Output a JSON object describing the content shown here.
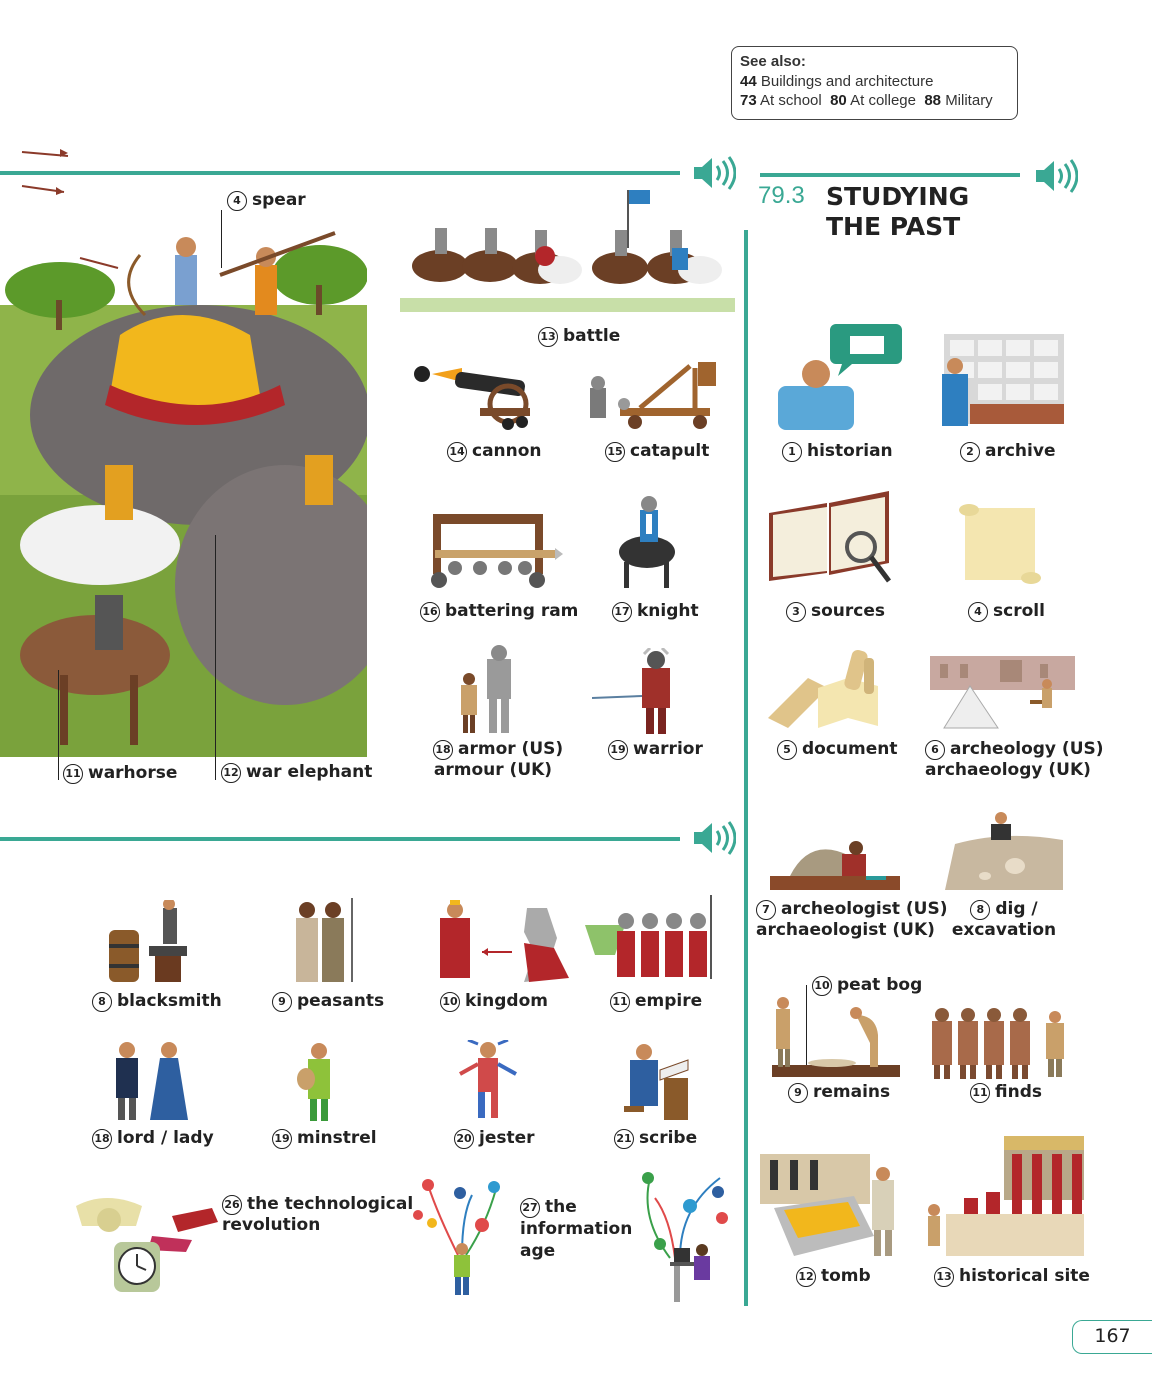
{
  "see_also": {
    "heading": "See also:",
    "line1_num": "44",
    "line1_text": "Buildings and architecture",
    "line2_a_num": "73",
    "line2_a_text": "At school",
    "line2_b_num": "80",
    "line2_b_text": "At college",
    "line2_c_num": "88",
    "line2_c_text": "Military"
  },
  "section": {
    "number": "79.3",
    "title_line1": "STUDYING",
    "title_line2": "THE PAST"
  },
  "battle_scene": {
    "spear": {
      "n": "4",
      "text": "spear"
    },
    "warhorse": {
      "n": "11",
      "text": "warhorse"
    },
    "war_elephant": {
      "n": "12",
      "text": "war elephant"
    }
  },
  "warfare": [
    {
      "n": "13",
      "text": "battle"
    },
    {
      "n": "14",
      "text": "cannon"
    },
    {
      "n": "15",
      "text": "catapult"
    },
    {
      "n": "16",
      "text": "battering ram"
    },
    {
      "n": "17",
      "text": "knight"
    },
    {
      "n": "18",
      "text": "armor (US)",
      "text2": "armour (UK)"
    },
    {
      "n": "19",
      "text": "warrior"
    }
  ],
  "society": [
    {
      "n": "8",
      "text": "blacksmith"
    },
    {
      "n": "9",
      "text": "peasants"
    },
    {
      "n": "10",
      "text": "kingdom"
    },
    {
      "n": "11",
      "text": "empire"
    },
    {
      "n": "18",
      "text": "lord / lady"
    },
    {
      "n": "19",
      "text": "minstrel"
    },
    {
      "n": "20",
      "text": "jester"
    },
    {
      "n": "21",
      "text": "scribe"
    },
    {
      "n": "26",
      "text": "the technological",
      "text2": "revolution"
    },
    {
      "n": "27",
      "text": "the",
      "text2": "information",
      "text3": "age"
    }
  ],
  "studying": [
    {
      "n": "1",
      "text": "historian"
    },
    {
      "n": "2",
      "text": "archive"
    },
    {
      "n": "3",
      "text": "sources"
    },
    {
      "n": "4",
      "text": "scroll"
    },
    {
      "n": "5",
      "text": "document"
    },
    {
      "n": "6",
      "text": "archeology (US)",
      "text2": "archaeology (UK)"
    },
    {
      "n": "7",
      "text": "archeologist (US)",
      "text2": "archaeologist (UK)"
    },
    {
      "n": "8",
      "text": "dig /",
      "text2": "excavation"
    },
    {
      "n": "10",
      "text": "peat bog"
    },
    {
      "n": "9",
      "text": "remains"
    },
    {
      "n": "11",
      "text": "finds"
    },
    {
      "n": "12",
      "text": "tomb"
    },
    {
      "n": "13",
      "text": "historical site"
    }
  ],
  "page_number": "167",
  "colors": {
    "accent": "#3aa894",
    "text": "#222222"
  },
  "icons": [
    "speaker-icon"
  ]
}
